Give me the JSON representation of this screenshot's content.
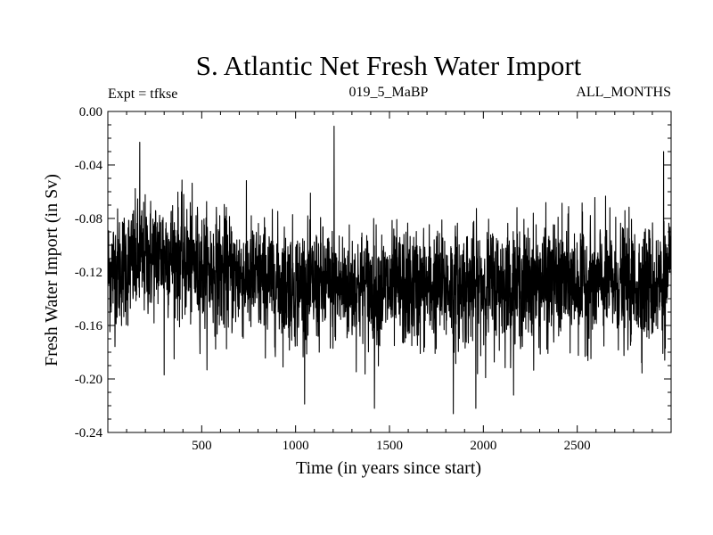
{
  "chart_data": {
    "type": "line",
    "title": "S. Atlantic Net Fresh Water Import",
    "subtitle_left": "Expt = tfkse",
    "subtitle_center": "019_5_MaBP",
    "subtitle_right": "ALL_MONTHS",
    "xlabel": "Time (in years since start)",
    "ylabel": "Fresh Water Import (in Sv)",
    "xlim": [
      0,
      3000
    ],
    "ylim": [
      -0.24,
      0.0
    ],
    "xticks": [
      500,
      1000,
      1500,
      2000,
      2500
    ],
    "xtick_labels": [
      "500",
      "1000",
      "1500",
      "2000",
      "2500"
    ],
    "yticks": [
      0.0,
      -0.04,
      -0.08,
      -0.12,
      -0.16,
      -0.2,
      -0.24
    ],
    "ytick_labels": [
      "0.00",
      "-0.04",
      "-0.08",
      "-0.12",
      "-0.16",
      "-0.20",
      "-0.24"
    ],
    "grid": false,
    "series": [
      {
        "name": "Net Fresh Water Import",
        "color": "#000000",
        "n_points": 3000,
        "x_start": 1,
        "x_step": 1,
        "approx_mean": [
          {
            "x": 0,
            "y": -0.12
          },
          {
            "x": 300,
            "y": -0.105
          },
          {
            "x": 500,
            "y": -0.118
          },
          {
            "x": 1000,
            "y": -0.13
          },
          {
            "x": 1500,
            "y": -0.133
          },
          {
            "x": 2000,
            "y": -0.13
          },
          {
            "x": 2500,
            "y": -0.128
          },
          {
            "x": 3000,
            "y": -0.13
          }
        ],
        "approx_std": 0.022,
        "annotated_extremes": [
          {
            "x": 1205,
            "y": -0.011
          },
          {
            "x": 170,
            "y": -0.023
          },
          {
            "x": 1840,
            "y": -0.226
          },
          {
            "x": 1420,
            "y": -0.222
          },
          {
            "x": 1960,
            "y": -0.222
          },
          {
            "x": 300,
            "y": -0.197
          },
          {
            "x": 2960,
            "y": -0.03
          }
        ]
      }
    ]
  }
}
